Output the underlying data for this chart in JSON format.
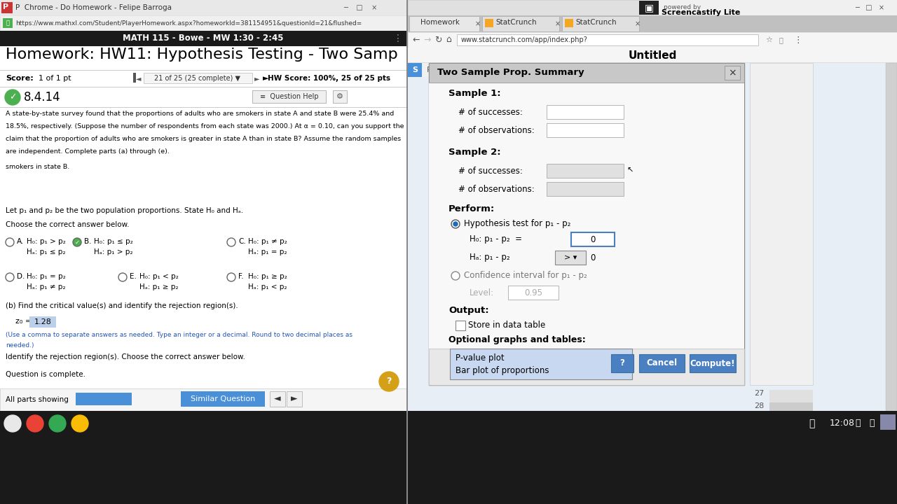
{
  "fig_width": 12.8,
  "fig_height": 7.2,
  "dpi": 100,
  "left": {
    "window_title": "P  Chrome - Do Homework - Felipe Barroga",
    "url_text": "https://www.mathxl.com/Student/PlayerHomework.aspx?homeworkId=381154951&questionId=21&flushed=",
    "title_bar_text": "MATH 115 - Bowe - MW 1:30 - 2:45",
    "hw_title": "Homework: HW11: Hypothesis Testing - Two Samp",
    "score_label": "Score:",
    "score_val": "1 of 1 pt",
    "nav_text": "21 of 25 (25 complete) ▼",
    "hw_score": "HW Score: 100%, 25 of 25 pts",
    "q_num": "8.4.14",
    "prob_lines": [
      "A state-by-state survey found that the proportions of adults who are smokers in state A and state B were 25.4% and",
      "18.5%, respectively. (Suppose the number of respondents from each state was 2000.) At α = 0.10, can you support the",
      "claim that the proportion of adults who are smokers is greater in state A than in state B? Assume the random samples",
      "are independent. Complete parts (a) through (e)."
    ],
    "smokers_line": "smokers in state B.",
    "p_text": "Let p₁ and p₂ be the two population proportions. State H₀ and Hₐ.",
    "choose_text": "Choose the correct answer below.",
    "opt_A_h0": "H₀: p₁ > p₂",
    "opt_A_ha": "Hₐ: p₁ ≤ p₂",
    "opt_B_h0": "H₀: p₁ ≤ p₂",
    "opt_B_ha": "Hₐ: p₁ > p₂",
    "opt_C_h0": "H₀: p₁ ≠ p₂",
    "opt_C_ha": "Hₐ: p₁ = p₂",
    "opt_D_h0": "H₀: p₁ = p₂",
    "opt_D_ha": "Hₐ: p₁ ≠ p₂",
    "opt_E_h0": "H₀: p₁ < p₂",
    "opt_E_ha": "Hₐ: p₁ ≥ p₂",
    "opt_F_h0": "H₀: p₁ ≥ p₂",
    "opt_F_ha": "Hₐ: p₁ < p₂",
    "part_b": "(b) Find the critical value(s) and identify the rejection region(s).",
    "z0_label": "z₀ = ",
    "z0_val": "1.28",
    "hint1": "(Use a comma to separate answers as needed. Type an integer or a decimal. Round to two decimal places as",
    "hint2": "needed.)",
    "identify": "Identify the rejection region(s). Choose the correct answer below.",
    "complete": "Question is complete.",
    "all_parts": "All parts showing",
    "similar_btn": "Similar Question"
  },
  "right": {
    "page_title": "Untitled",
    "tab1": "Homework",
    "tab2": "StatCrunch",
    "tab3": "StatCrunch",
    "url": "www.statcrunch.com/app/index.php?",
    "screencastify1": "powered by",
    "screencastify2": "Screencastify Lite",
    "dlg_title": "Two Sample Prop. Summary",
    "s1": "Sample 1:",
    "s1_succ": "# of successes:",
    "s1_obs": "# of observations:",
    "s2": "Sample 2:",
    "s2_succ": "# of successes:",
    "s2_obs": "# of observations:",
    "perform": "Perform:",
    "hyp_test": "Hypothesis test for p₁ - p₂",
    "h0_lbl": "H₀: p₁ - p₂  =",
    "h0_val": "0",
    "ha_lbl": "Hₐ: p₁ - p₂",
    "ha_op": "> ▾",
    "ha_val": "0",
    "ci_lbl": "Confidence interval for p₁ - p₂",
    "level_lbl": "Level:",
    "level_val": "0.95",
    "output_lbl": "Output:",
    "store_lbl": "Store in data table",
    "opt_lbl": "Optional graphs and tables:",
    "opt1": "P-value plot",
    "opt2": "Bar plot of proportions",
    "btn1": "?",
    "btn2": "Cancel",
    "btn3": "Compute!",
    "row27": "27",
    "row28": "28",
    "time": "12:08"
  }
}
